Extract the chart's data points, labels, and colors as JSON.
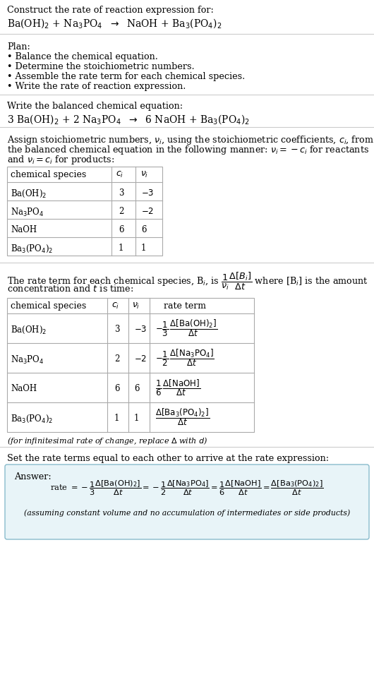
{
  "bg_color": "#ffffff",
  "text_color": "#000000",
  "title_line1": "Construct the rate of reaction expression for:",
  "plan_label": "Plan:",
  "plan_items": [
    "• Balance the chemical equation.",
    "• Determine the stoichiometric numbers.",
    "• Assemble the rate term for each chemical species.",
    "• Write the rate of reaction expression."
  ],
  "balanced_label": "Write the balanced chemical equation:",
  "set_equal_label": "Set the rate terms equal to each other to arrive at the rate expression:",
  "answer_label": "Answer:",
  "answer_note": "(assuming constant volume and no accumulation of intermediates or side products)",
  "answer_box_color": "#e8f4f8",
  "answer_box_border": "#88bbcc",
  "rule_color": "#cccccc",
  "table_border_color": "#aaaaaa"
}
